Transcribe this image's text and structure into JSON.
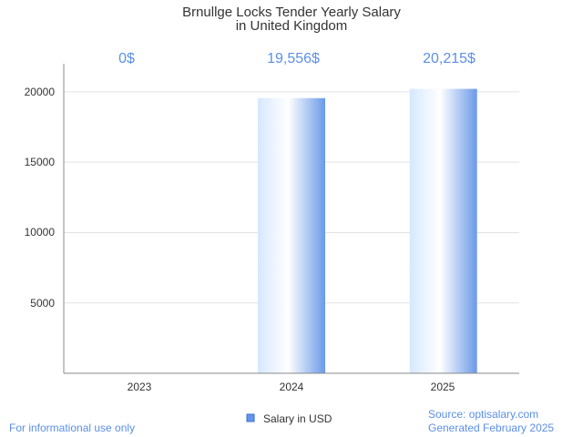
{
  "chart_data": {
    "type": "bar",
    "title_lines": [
      "Brnullge Locks Tender Yearly Salary",
      "in United Kingdom"
    ],
    "categories": [
      "2023",
      "2024",
      "2025"
    ],
    "values": [
      0,
      19556,
      20215
    ],
    "data_labels": [
      "0$",
      "19,556$",
      "20,215$"
    ],
    "y_ticks": [
      "5000",
      "10000",
      "15000",
      "20000"
    ],
    "ylim": [
      0,
      22000
    ],
    "xlabel": "",
    "ylabel": "",
    "grid": true,
    "legend": {
      "label": "Salary in USD",
      "placement": "bottom-center",
      "color": "#6495ed"
    },
    "bar_gradient": {
      "light": "#d6e8ff",
      "mid": "#ffffff",
      "dark": "#6a9ae8"
    },
    "label_color": "#5b8fe8"
  },
  "footer": {
    "left_note": "For informational use only",
    "source": "Source: optisalary.com",
    "generated": "Generated February 2025"
  }
}
